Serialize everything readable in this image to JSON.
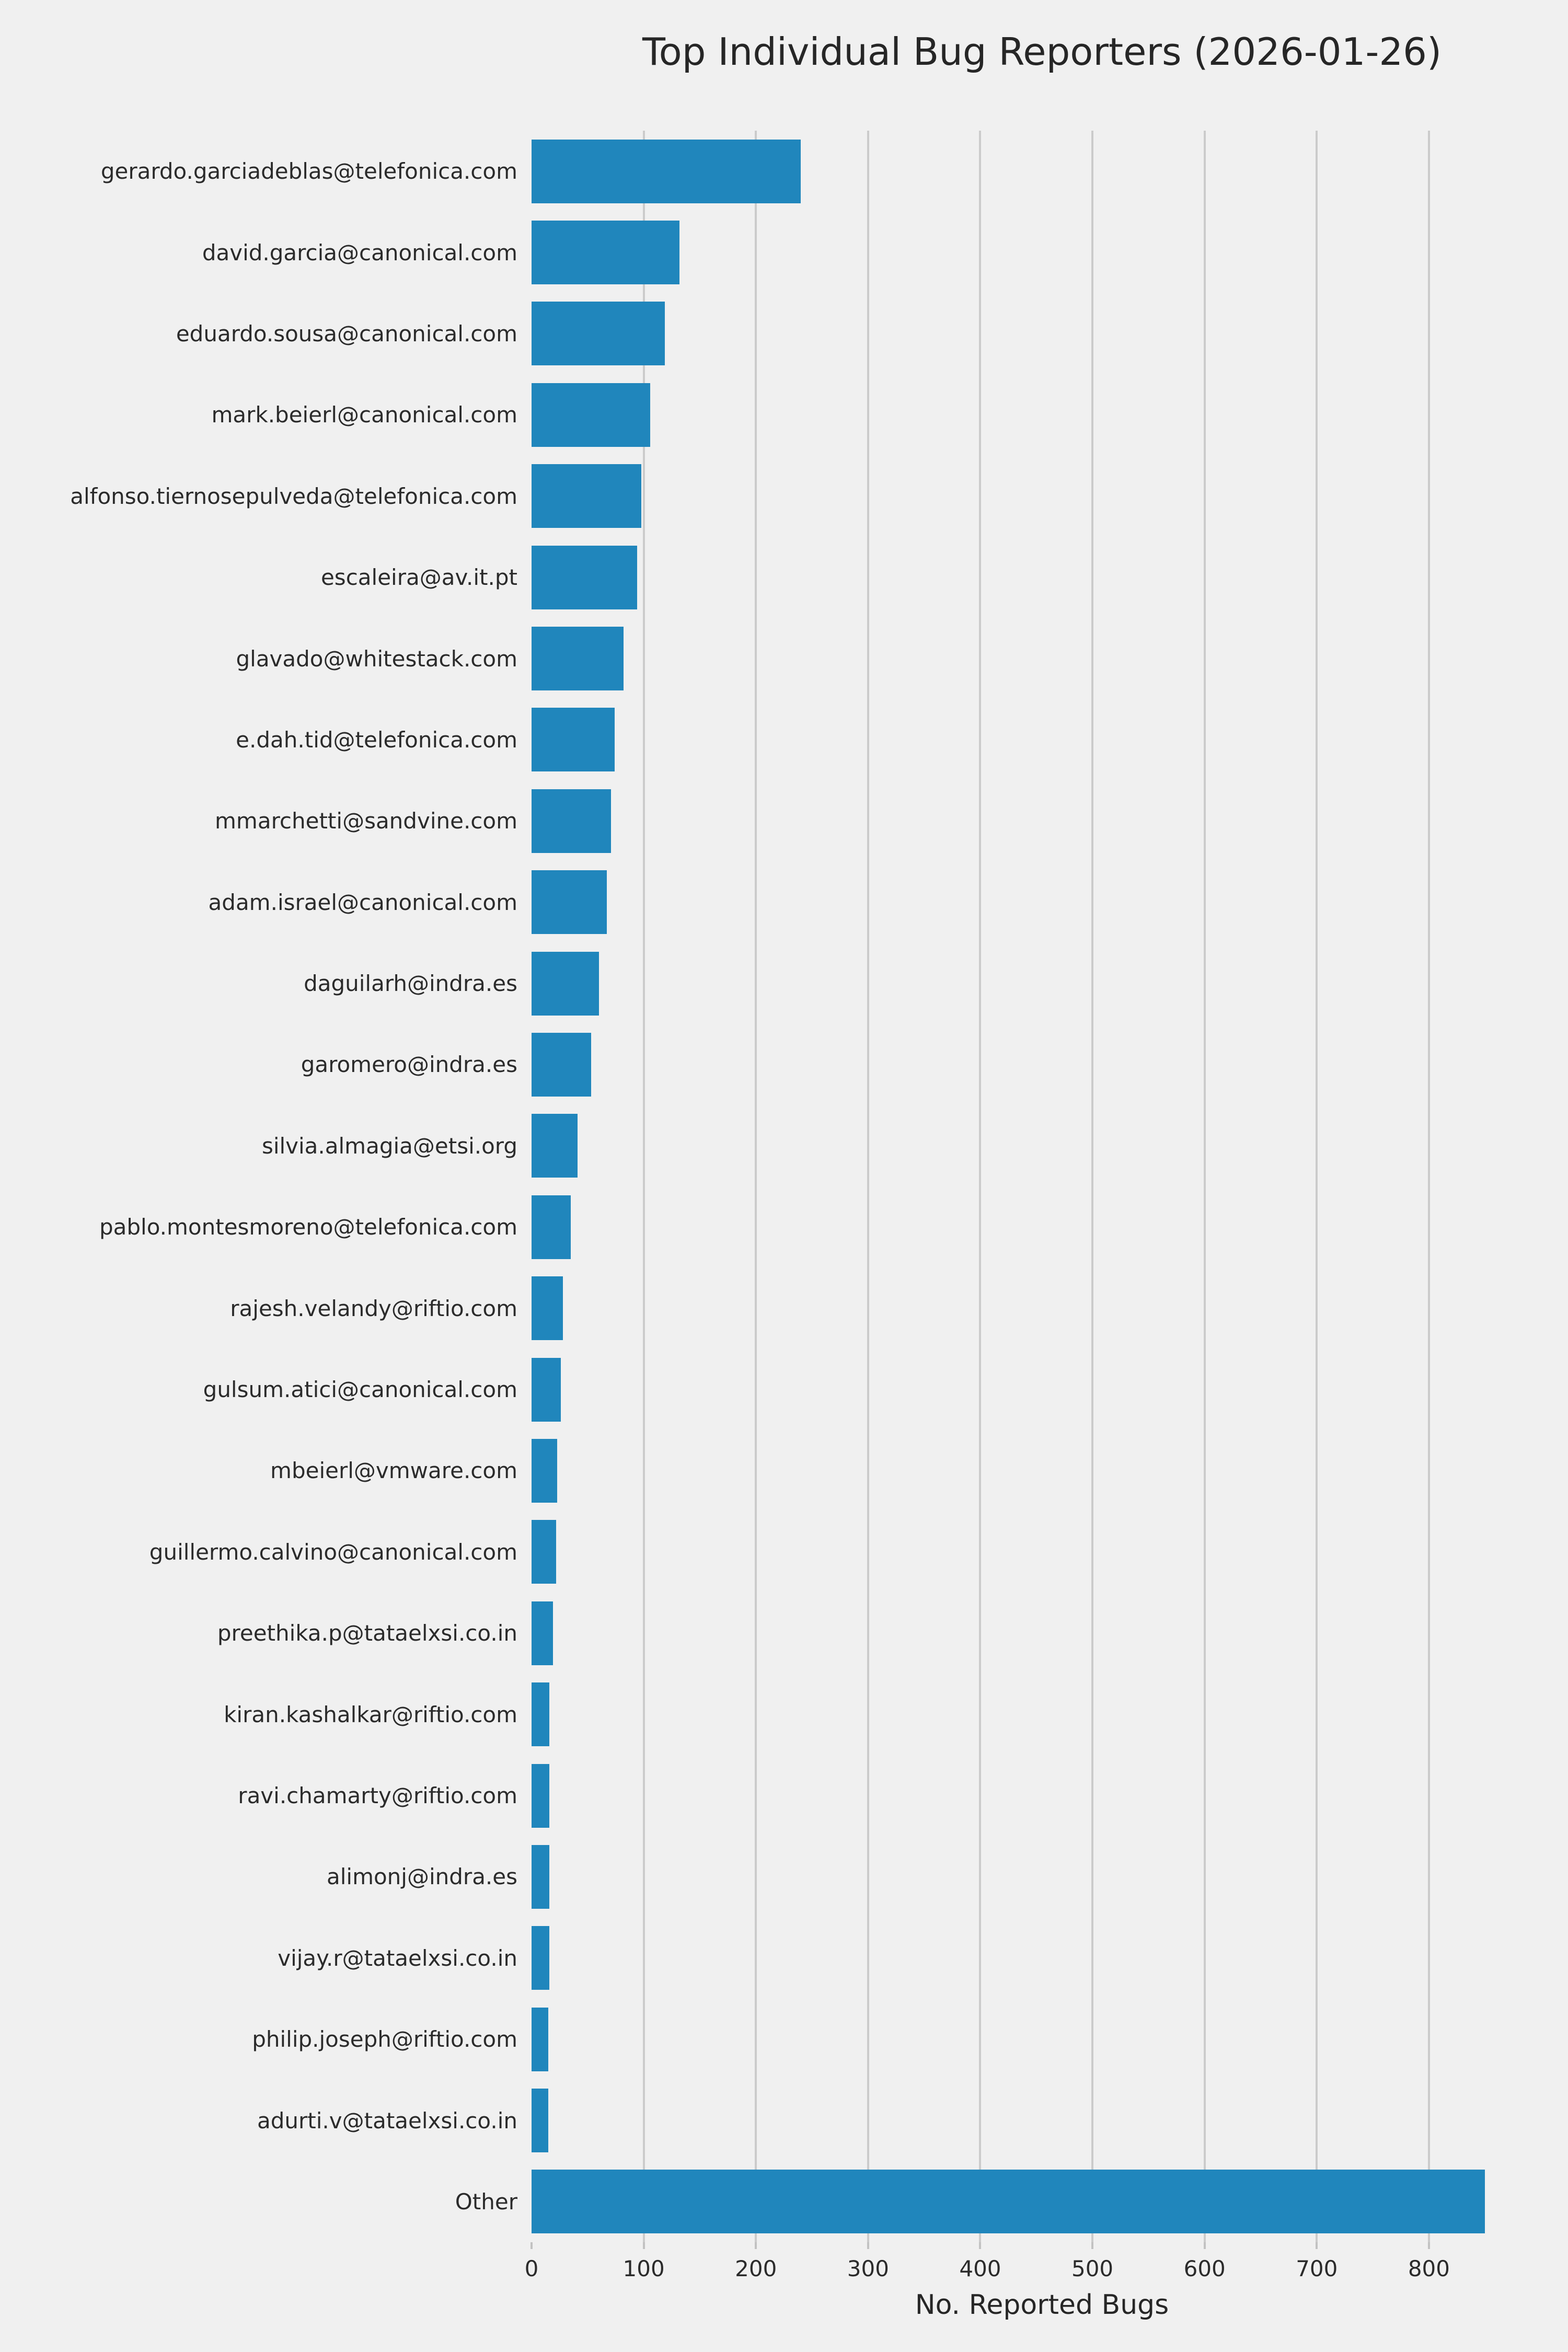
{
  "chart_data": {
    "type": "bar",
    "orientation": "horizontal",
    "title": "Top Individual Bug Reporters (2026-01-26)",
    "xlabel": "No. Reported Bugs",
    "ylabel": "",
    "categories": [
      "gerardo.garciadeblas@telefonica.com",
      "david.garcia@canonical.com",
      "eduardo.sousa@canonical.com",
      "mark.beierl@canonical.com",
      "alfonso.tiernosepulveda@telefonica.com",
      "escaleira@av.it.pt",
      "glavado@whitestack.com",
      "e.dah.tid@telefonica.com",
      "mmarchetti@sandvine.com",
      "adam.israel@canonical.com",
      "daguilarh@indra.es",
      "garomero@indra.es",
      "silvia.almagia@etsi.org",
      "pablo.montesmoreno@telefonica.com",
      "rajesh.velandy@riftio.com",
      "gulsum.atici@canonical.com",
      "mbeierl@vmware.com",
      "guillermo.calvino@canonical.com",
      "preethika.p@tataelxsi.co.in",
      "kiran.kashalkar@riftio.com",
      "ravi.chamarty@riftio.com",
      "alimonj@indra.es",
      "vijay.r@tataelxsi.co.in",
      "philip.joseph@riftio.com",
      "adurti.v@tataelxsi.co.in",
      "Other"
    ],
    "values": [
      240,
      132,
      119,
      106,
      98,
      94,
      82,
      74,
      71,
      67,
      60,
      53,
      41,
      35,
      28,
      26,
      23,
      22,
      19,
      16,
      16,
      16,
      16,
      15,
      15,
      850
    ],
    "xlim": [
      0,
      910
    ],
    "x_ticks": [
      0,
      100,
      200,
      300,
      400,
      500,
      600,
      700,
      800
    ],
    "grid": true,
    "legend": false,
    "colors": {
      "bar": "#2086BC",
      "background": "#f0f0f0",
      "gridline": "#cbcbcb",
      "tick": "#c2c2c2",
      "text": "#2b2b2b"
    }
  }
}
